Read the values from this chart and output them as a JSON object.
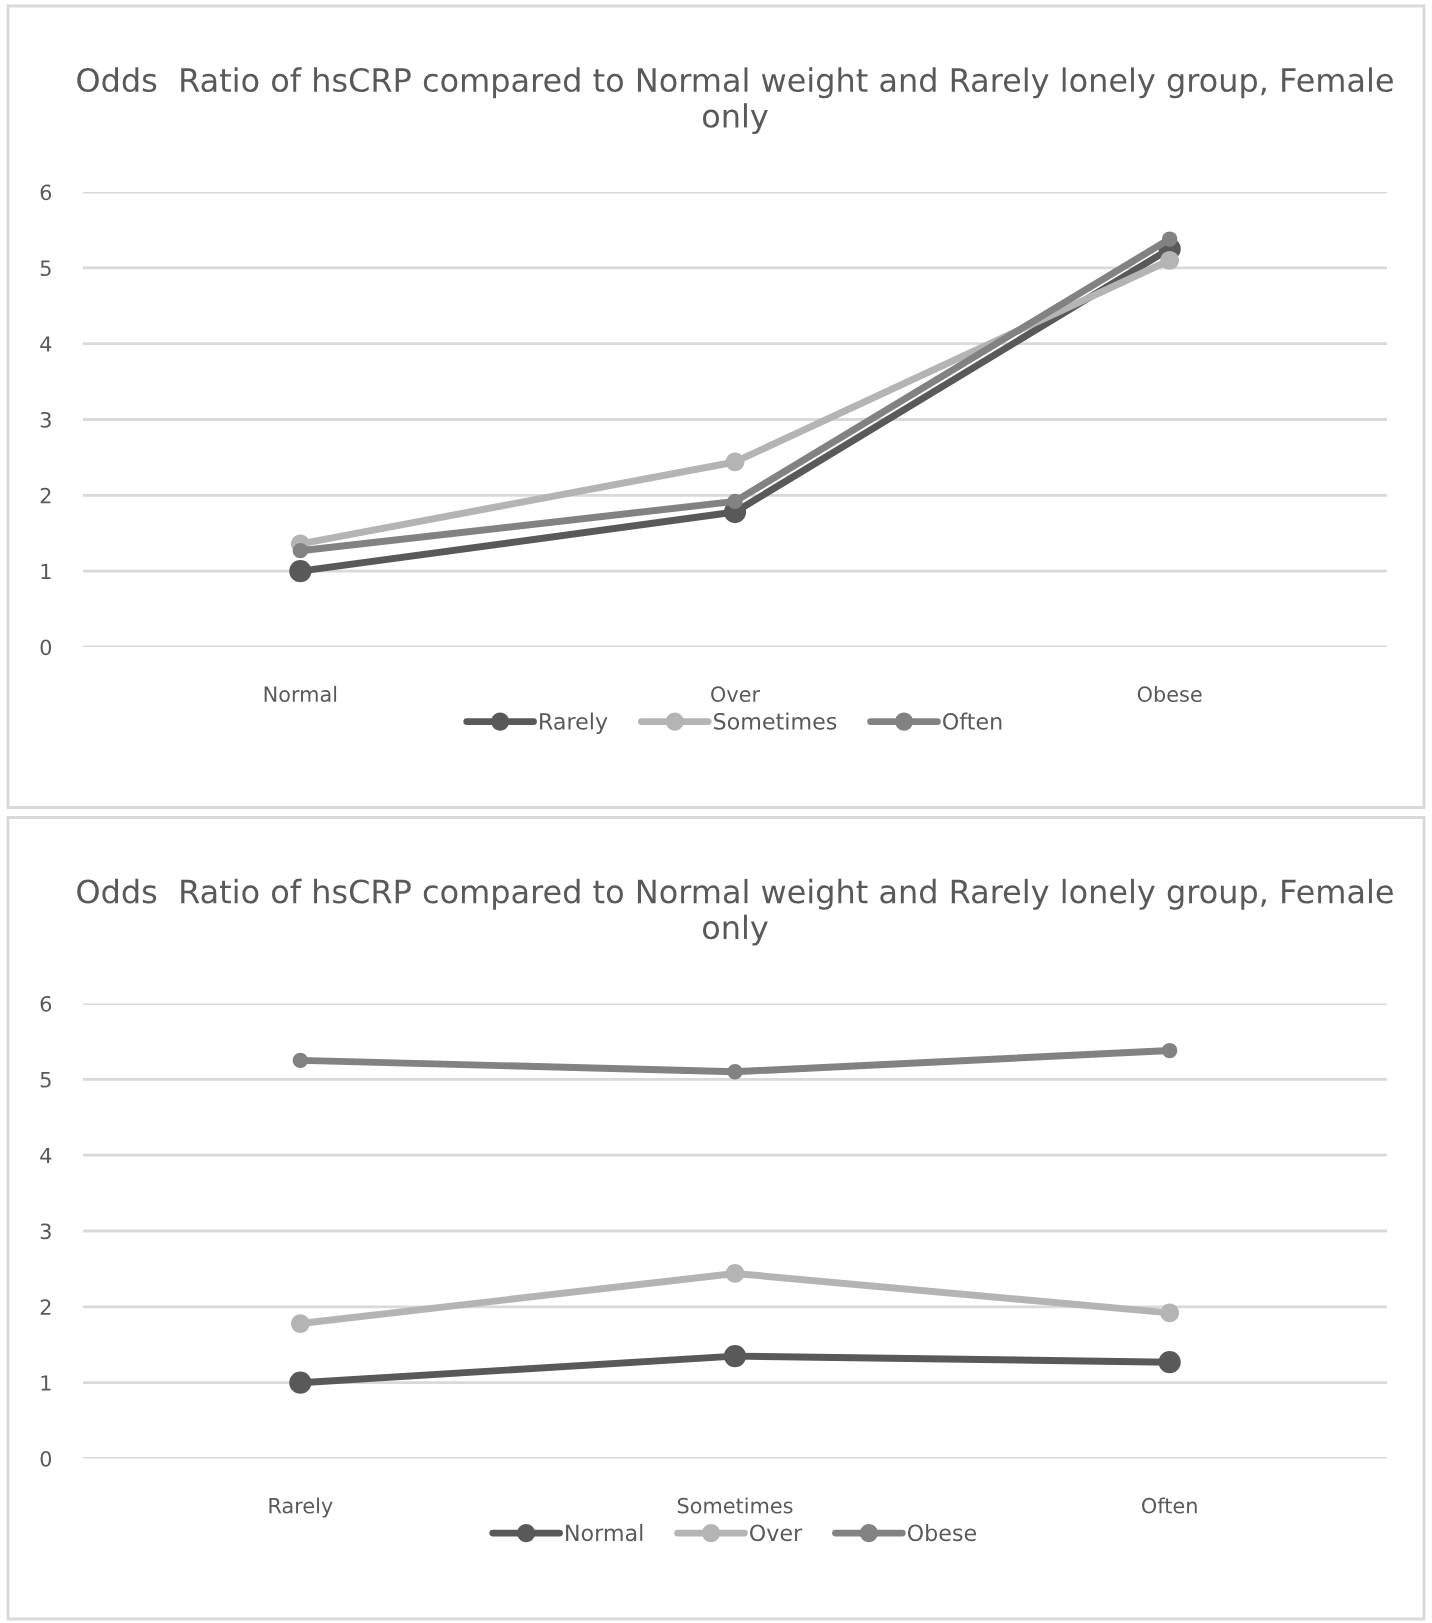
{
  "chart_data": [
    {
      "type": "line",
      "title": "Odds  Ratio of hsCRP compared to Normal weight and Rarely lonely group, Female only",
      "categories": [
        "Normal",
        "Over",
        "Obese"
      ],
      "series": [
        {
          "name": "Rarely",
          "color": "#595959",
          "values": [
            1.0,
            1.78,
            5.25
          ]
        },
        {
          "name": "Sometimes",
          "color": "#b4b4b4",
          "values": [
            1.36,
            2.44,
            5.1
          ]
        },
        {
          "name": "Often",
          "color": "#828282",
          "values": [
            1.27,
            1.92,
            5.38
          ]
        }
      ],
      "ylim": [
        0,
        6
      ],
      "yticks": [
        0,
        1,
        2,
        3,
        4,
        5,
        6
      ],
      "grid": "y",
      "legend": "bottom",
      "marker": "circle",
      "line_style": "solid"
    },
    {
      "type": "line",
      "title": "Odds  Ratio of hsCRP compared to Normal weight and Rarely lonely group, Female only",
      "categories": [
        "Rarely",
        "Sometimes",
        "Often"
      ],
      "series": [
        {
          "name": "Normal",
          "color": "#595959",
          "values": [
            1.0,
            1.35,
            1.27
          ]
        },
        {
          "name": "Over",
          "color": "#b4b4b4",
          "values": [
            1.78,
            2.44,
            1.92
          ]
        },
        {
          "name": "Obese",
          "color": "#828282",
          "values": [
            5.25,
            5.1,
            5.38
          ]
        }
      ],
      "ylim": [
        0,
        6
      ],
      "yticks": [
        0,
        1,
        2,
        3,
        4,
        5,
        6
      ],
      "grid": "y",
      "legend": "bottom",
      "marker": "circle",
      "line_style": "solid"
    }
  ]
}
